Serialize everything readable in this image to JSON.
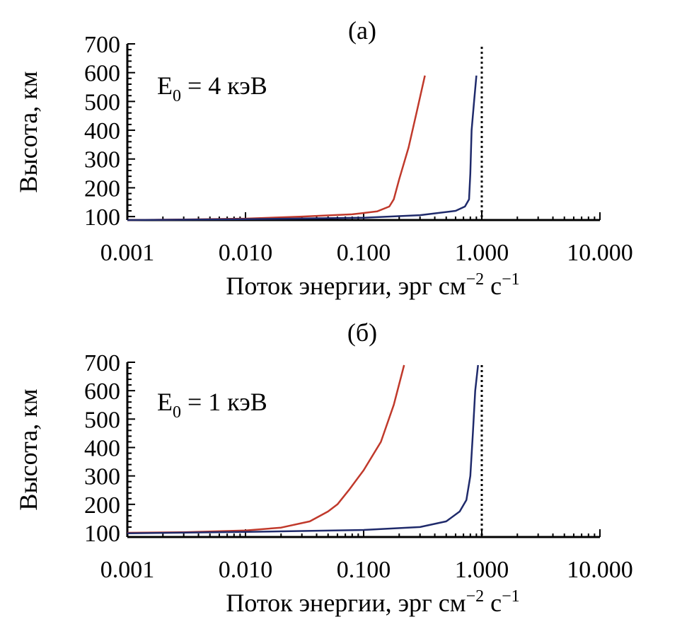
{
  "chart_data": [
    {
      "type": "line",
      "panel_label": "(а)",
      "annotation": {
        "prefix": "E",
        "subscript": "0",
        "suffix": " = 4 кэВ"
      },
      "xlabel": {
        "text": "Поток энергии, эрг см",
        "exp1": "−2",
        "mid": " с",
        "exp2": "−1"
      },
      "ylabel": "Высота, км",
      "x_scale": "log",
      "xlim": [
        0.001,
        10
      ],
      "ylim": [
        88,
        700
      ],
      "x_ticks": [
        0.001,
        0.01,
        0.1,
        1,
        10
      ],
      "x_tick_labels": [
        "0.001",
        "0.010",
        "0.100",
        "1.000",
        "10.000"
      ],
      "y_ticks": [
        100,
        200,
        300,
        400,
        500,
        600,
        700
      ],
      "y_tick_labels": [
        "100",
        "200",
        "300",
        "400",
        "500",
        "600",
        "700"
      ],
      "reference_line_x": 1.0,
      "series": [
        {
          "color": "#c0392b",
          "points": [
            [
              0.001,
              88
            ],
            [
              0.003,
              90
            ],
            [
              0.01,
              93
            ],
            [
              0.03,
              100
            ],
            [
              0.08,
              108
            ],
            [
              0.13,
              118
            ],
            [
              0.165,
              135
            ],
            [
              0.18,
              160
            ],
            [
              0.2,
              230
            ],
            [
              0.24,
              340
            ],
            [
              0.28,
              460
            ],
            [
              0.33,
              590
            ]
          ]
        },
        {
          "color": "#1f2a6b",
          "points": [
            [
              0.001,
              88
            ],
            [
              0.01,
              91
            ],
            [
              0.1,
              96
            ],
            [
              0.3,
              105
            ],
            [
              0.6,
              120
            ],
            [
              0.72,
              135
            ],
            [
              0.78,
              160
            ],
            [
              0.8,
              250
            ],
            [
              0.82,
              400
            ],
            [
              0.86,
              500
            ],
            [
              0.9,
              590
            ]
          ]
        }
      ]
    },
    {
      "type": "line",
      "panel_label": "(б)",
      "annotation": {
        "prefix": "E",
        "subscript": "0",
        "suffix": " = 1 кэВ"
      },
      "xlabel": {
        "text": "Поток энергии, эрг см",
        "exp1": "−2",
        "mid": " с",
        "exp2": "−1"
      },
      "ylabel": "Высота, км",
      "x_scale": "log",
      "xlim": [
        0.001,
        10
      ],
      "ylim": [
        85,
        700
      ],
      "x_ticks": [
        0.001,
        0.01,
        0.1,
        1,
        10
      ],
      "x_tick_labels": [
        "0.001",
        "0.010",
        "0.100",
        "1.000",
        "10.000"
      ],
      "y_ticks": [
        100,
        200,
        300,
        400,
        500,
        600,
        700
      ],
      "y_tick_labels": [
        "100",
        "200",
        "300",
        "400",
        "500",
        "600",
        "700"
      ],
      "reference_line_x": 1.0,
      "series": [
        {
          "color": "#c0392b",
          "points": [
            [
              0.001,
              100
            ],
            [
              0.003,
              102
            ],
            [
              0.01,
              108
            ],
            [
              0.02,
              118
            ],
            [
              0.035,
              140
            ],
            [
              0.05,
              175
            ],
            [
              0.06,
              200
            ],
            [
              0.075,
              250
            ],
            [
              0.1,
              320
            ],
            [
              0.14,
              420
            ],
            [
              0.18,
              550
            ],
            [
              0.22,
              690
            ]
          ]
        },
        {
          "color": "#1f2a6b",
          "points": [
            [
              0.001,
              98
            ],
            [
              0.01,
              103
            ],
            [
              0.1,
              110
            ],
            [
              0.3,
              120
            ],
            [
              0.5,
              140
            ],
            [
              0.65,
              175
            ],
            [
              0.74,
              215
            ],
            [
              0.8,
              300
            ],
            [
              0.84,
              450
            ],
            [
              0.88,
              600
            ],
            [
              0.93,
              690
            ]
          ]
        }
      ]
    }
  ]
}
